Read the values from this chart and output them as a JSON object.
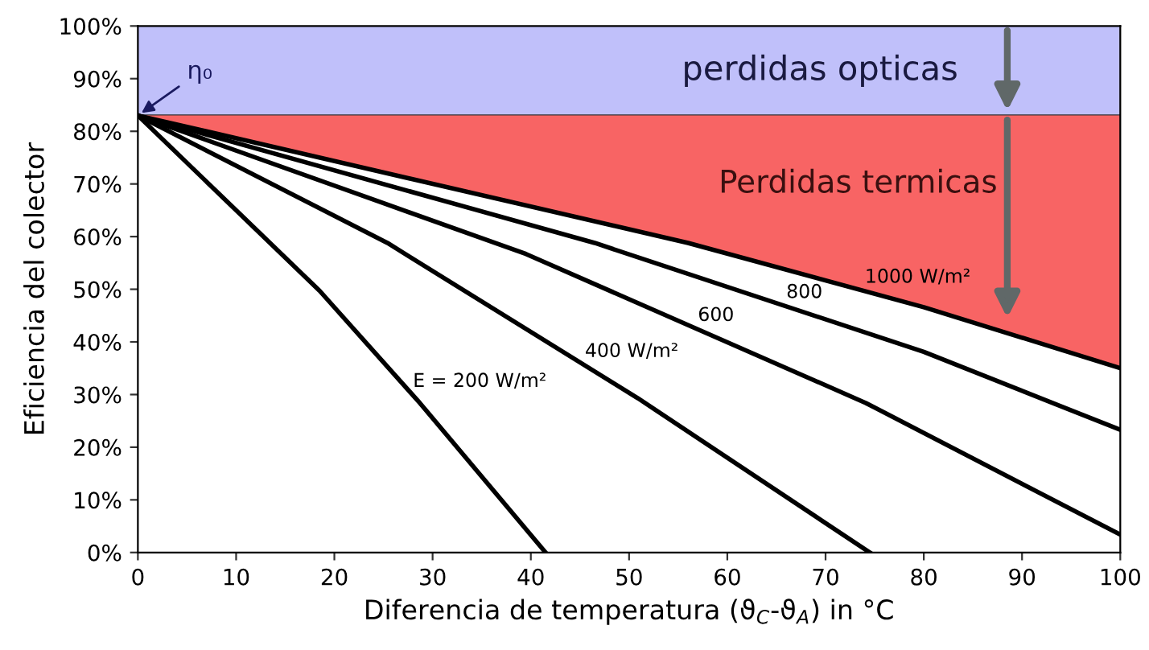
{
  "chart_data": {
    "type": "line",
    "xlabel": "Diferencia de temperatura (ϑ$_{C}$-ϑ$_{A}$) in °C",
    "ylabel": "Eficiencia del colector",
    "xlim": [
      0,
      100
    ],
    "xticks": [
      0,
      10,
      20,
      30,
      40,
      50,
      60,
      70,
      80,
      90,
      100
    ],
    "ylim": [
      0,
      100
    ],
    "yticks": [
      {
        "value": 0,
        "label": "0%"
      },
      {
        "value": 10,
        "label": "10%"
      },
      {
        "value": 20,
        "label": "20%"
      },
      {
        "value": 30,
        "label": "30%"
      },
      {
        "value": 40,
        "label": "40%"
      },
      {
        "value": 50,
        "label": "50%"
      },
      {
        "value": 60,
        "label": "60%"
      },
      {
        "value": 70,
        "label": "70%"
      },
      {
        "value": 80,
        "label": "80%"
      },
      {
        "value": 90,
        "label": "90%"
      },
      {
        "value": 100,
        "label": "100%"
      }
    ],
    "grid": false,
    "legend": false,
    "marker": "none",
    "line_style": "solid",
    "series": [
      {
        "name": "1000 W/m²",
        "color": "#000000",
        "x": [
          0,
          56,
          80,
          100
        ],
        "values": [
          83,
          58.8,
          46.6,
          35
        ],
        "lower": [
          83,
          58.8,
          46.6,
          35
        ],
        "upper": [
          83,
          83,
          83,
          83
        ]
      },
      {
        "name": "800",
        "color": "#000000",
        "x": [
          0,
          46.5,
          80,
          100
        ],
        "values": [
          83,
          58.8,
          38.1,
          23.3
        ]
      },
      {
        "name": "600",
        "color": "#000000",
        "x": [
          0,
          39.5,
          74.1,
          100
        ],
        "values": [
          83,
          56.7,
          28.4,
          3.4
        ]
      },
      {
        "name": "400 W/m²",
        "color": "#000000",
        "x": [
          0,
          25.4,
          50.9,
          74.5
        ],
        "values": [
          83,
          58.8,
          29.3,
          0
        ]
      },
      {
        "name": "E = 200 W/m²",
        "color": "#000000",
        "x": [
          0,
          18.5,
          28.7,
          41.5
        ],
        "values": [
          83,
          49.7,
          28.4,
          0
        ]
      }
    ],
    "bands": [
      {
        "axis": "y",
        "from": 83,
        "to": 100,
        "label": "perdidas opticas",
        "color": "#c0c0fa"
      }
    ],
    "ref_lines": [
      {
        "axis": "y",
        "value": 83,
        "color": "#333333"
      }
    ],
    "annotations": [
      {
        "text": "η₀",
        "x": 0,
        "y": 83
      },
      "Perdidas termicas"
    ]
  }
}
